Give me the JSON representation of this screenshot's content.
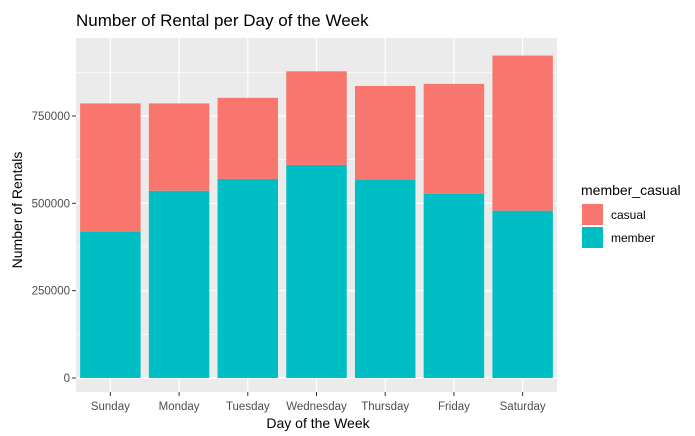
{
  "chart_data": {
    "type": "bar",
    "stacked": true,
    "title": "Number of Rental per Day of the Week",
    "xlabel": "Day of the Week",
    "ylabel": "Number of Rentals",
    "categories": [
      "Sunday",
      "Monday",
      "Tuesday",
      "Wednesday",
      "Thursday",
      "Friday",
      "Saturday"
    ],
    "series": [
      {
        "name": "member",
        "values": [
          419000,
          536000,
          570000,
          610000,
          569000,
          527000,
          479000
        ],
        "color": "#00BFC4"
      },
      {
        "name": "casual",
        "values": [
          367000,
          250000,
          232000,
          268000,
          267000,
          315000,
          444000
        ],
        "color": "#F8766D"
      }
    ],
    "ylim": [
      0,
      950000
    ],
    "yticks": [
      0,
      250000,
      500000,
      750000
    ],
    "ytick_labels": [
      "0",
      "250000",
      "500000",
      "750000"
    ],
    "grid": true,
    "legend": {
      "title": "member_casual",
      "placement": "right",
      "entries": [
        {
          "label": "casual",
          "color": "#F8766D"
        },
        {
          "label": "member",
          "color": "#00BFC4"
        }
      ]
    },
    "panel_color": "#EBEBEB",
    "grid_color": "#FFFFFF"
  }
}
